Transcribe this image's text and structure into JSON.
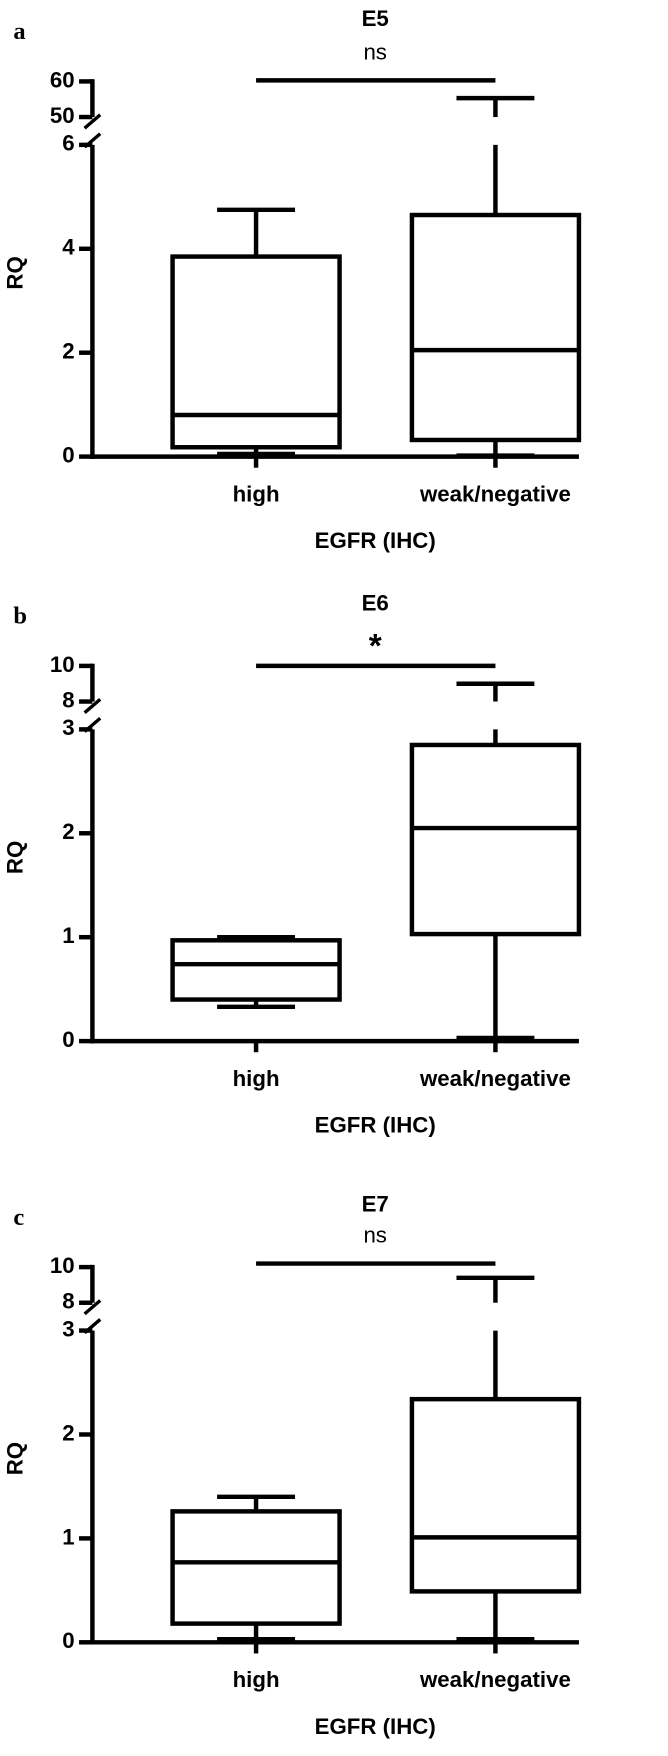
{
  "chart_data": [
    {
      "type": "box",
      "panel": "a",
      "title": "E5",
      "xlabel": "EGFR (IHC)",
      "ylabel": "RQ",
      "categories": [
        "high",
        "weak/negative"
      ],
      "boxes": [
        {
          "min": 0.05,
          "q1": 0.18,
          "median": 0.8,
          "q3": 3.85,
          "max": 4.75
        },
        {
          "min": 0.02,
          "q1": 0.32,
          "median": 2.05,
          "q3": 4.65,
          "max": 55.3
        }
      ],
      "y_segments": [
        {
          "ylim": [
            0,
            6
          ],
          "yticks": [
            0,
            2,
            4,
            6
          ]
        },
        {
          "ylim": [
            50,
            60
          ],
          "yticks": [
            50,
            60
          ]
        }
      ],
      "significance": {
        "label": "ns",
        "y": 60.3
      }
    },
    {
      "type": "box",
      "panel": "b",
      "title": "E6",
      "xlabel": "EGFR (IHC)",
      "ylabel": "RQ",
      "categories": [
        "high",
        "weak/negative"
      ],
      "boxes": [
        {
          "min": 0.33,
          "q1": 0.4,
          "median": 0.74,
          "q3": 0.97,
          "max": 1.0
        },
        {
          "min": 0.03,
          "q1": 1.03,
          "median": 2.05,
          "q3": 2.85,
          "max": 9.0
        }
      ],
      "y_segments": [
        {
          "ylim": [
            0,
            3
          ],
          "yticks": [
            0,
            1,
            2,
            3
          ]
        },
        {
          "ylim": [
            8,
            10
          ],
          "yticks": [
            8,
            10
          ]
        }
      ],
      "significance": {
        "label": "*",
        "y": 10
      }
    },
    {
      "type": "box",
      "panel": "c",
      "title": "E7",
      "xlabel": "EGFR (IHC)",
      "ylabel": "RQ",
      "categories": [
        "high",
        "weak/negative"
      ],
      "boxes": [
        {
          "min": 0.03,
          "q1": 0.18,
          "median": 0.77,
          "q3": 1.26,
          "max": 1.4
        },
        {
          "min": 0.03,
          "q1": 0.49,
          "median": 1.01,
          "q3": 2.34,
          "max": 9.4
        }
      ],
      "y_segments": [
        {
          "ylim": [
            0,
            3
          ],
          "yticks": [
            0,
            1,
            2,
            3
          ]
        },
        {
          "ylim": [
            8,
            10
          ],
          "yticks": [
            8,
            10
          ]
        }
      ],
      "significance": {
        "label": "ns",
        "y": 10.2
      }
    }
  ]
}
